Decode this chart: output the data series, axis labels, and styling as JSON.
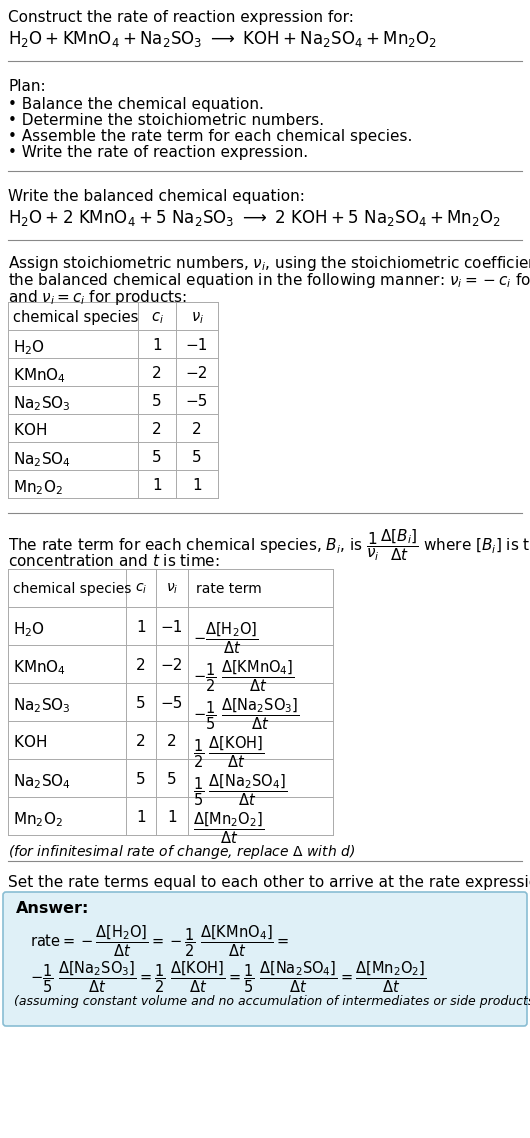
{
  "bg_color": "#ffffff",
  "title_line1": "Construct the rate of reaction expression for:",
  "plan_header": "Plan:",
  "plan_items": [
    "• Balance the chemical equation.",
    "• Determine the stoichiometric numbers.",
    "• Assemble the rate term for each chemical species.",
    "• Write the rate of reaction expression."
  ],
  "balanced_header": "Write the balanced chemical equation:",
  "table1_headers": [
    "chemical species",
    "c_i",
    "v_i"
  ],
  "table1_species": [
    "H₂O",
    "KMnO₄",
    "Na₂SO₃",
    "KOH",
    "Na₂SO₄",
    "Mn₂O₂"
  ],
  "table1_ci": [
    "1",
    "2",
    "5",
    "2",
    "5",
    "1"
  ],
  "table1_nu": [
    "−1",
    "−2",
    "−5",
    "2",
    "5",
    "1"
  ],
  "table2_headers": [
    "chemical species",
    "c_i",
    "v_i",
    "rate term"
  ],
  "table2_species": [
    "H₂O",
    "KMnO₄",
    "Na₂SO₃",
    "KOH",
    "Na₂SO₄",
    "Mn₂O₂"
  ],
  "table2_ci": [
    "1",
    "2",
    "5",
    "2",
    "5",
    "1"
  ],
  "table2_nu": [
    "−1",
    "−2",
    "−5",
    "2",
    "5",
    "1"
  ],
  "infinitesimal_note": "(for infinitesimal rate of change, replace Δ with ",
  "set_equal_text": "Set the rate terms equal to each other to arrive at the rate expression:",
  "answer_box_color": "#dff0f7",
  "answer_border_color": "#89bdd3",
  "line_color": "#888888"
}
